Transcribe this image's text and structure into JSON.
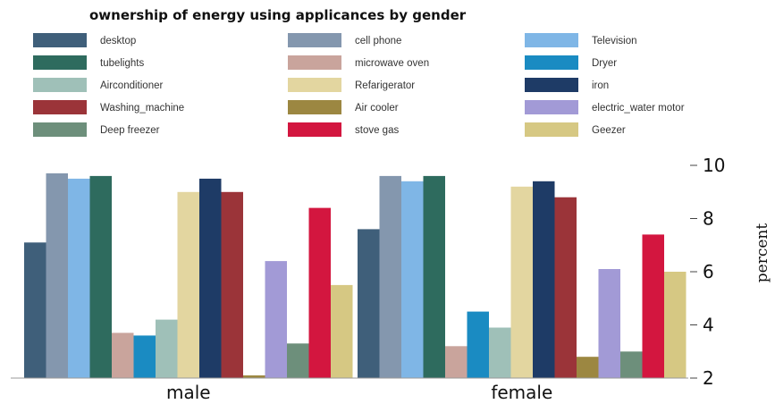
{
  "chart_data": {
    "type": "bar",
    "title": "ownership of energy using applicances by gender",
    "ylabel": "percent",
    "xlabel": "",
    "ylim": [
      2,
      10
    ],
    "yticks": [
      2,
      4,
      6,
      8,
      10
    ],
    "categories": [
      "male",
      "female"
    ],
    "legend_placement": "top",
    "grid": false,
    "series": [
      {
        "name": "desktop",
        "color": "#3f5f7a",
        "values": [
          7.1,
          7.6
        ]
      },
      {
        "name": "cell phone",
        "color": "#8497ae",
        "values": [
          9.7,
          9.6
        ]
      },
      {
        "name": "Television",
        "color": "#7fb6e6",
        "values": [
          9.5,
          9.4
        ]
      },
      {
        "name": "tubelights",
        "color": "#2e6b5e",
        "values": [
          9.6,
          9.6
        ]
      },
      {
        "name": "microwave oven",
        "color": "#c9a49c",
        "values": [
          3.7,
          3.2
        ]
      },
      {
        "name": "Dryer",
        "color": "#1a8bc2",
        "values": [
          3.6,
          4.5
        ]
      },
      {
        "name": "Airconditioner",
        "color": "#9fc0b8",
        "values": [
          4.2,
          3.9
        ]
      },
      {
        "name": "Refarigerator",
        "color": "#e3d6a0",
        "values": [
          9.0,
          9.2
        ]
      },
      {
        "name": "iron",
        "color": "#1e3b66",
        "values": [
          9.5,
          9.4
        ]
      },
      {
        "name": "Washing_machine",
        "color": "#9b3439",
        "values": [
          9.0,
          8.8
        ]
      },
      {
        "name": "Air cooler",
        "color": "#9c8741",
        "values": [
          2.1,
          2.8
        ]
      },
      {
        "name": "electric_water motor",
        "color": "#a29ad6",
        "values": [
          6.4,
          6.1
        ]
      },
      {
        "name": "Deep freezer",
        "color": "#6d8f7b",
        "values": [
          3.3,
          3.0
        ]
      },
      {
        "name": "stove gas",
        "color": "#d3163f",
        "values": [
          8.4,
          7.4
        ]
      },
      {
        "name": "Geezer",
        "color": "#d6c883",
        "values": [
          5.5,
          6.0
        ]
      }
    ]
  }
}
